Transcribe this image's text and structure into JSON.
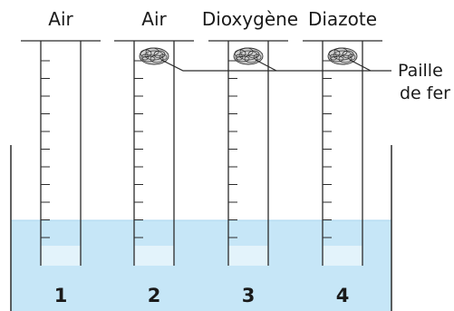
{
  "tubes": [
    {
      "label": "Air",
      "number": "1",
      "has_wool": false
    },
    {
      "label": "Air",
      "number": "2",
      "has_wool": true
    },
    {
      "label": "Dioxygène",
      "number": "3",
      "has_wool": true
    },
    {
      "label": "Diazote",
      "number": "4",
      "has_wool": true
    }
  ],
  "annotation": {
    "line1": "Paille",
    "line2": "de fer"
  },
  "graduation_count": 11,
  "colors": {
    "water": "#c6e6f7",
    "water_surface": "#a9d6ef",
    "tube_water": "#e3f3fb",
    "stroke": "#2b2b2b",
    "wool_fill": "#d0d0d0",
    "wool_line": "#333333"
  }
}
